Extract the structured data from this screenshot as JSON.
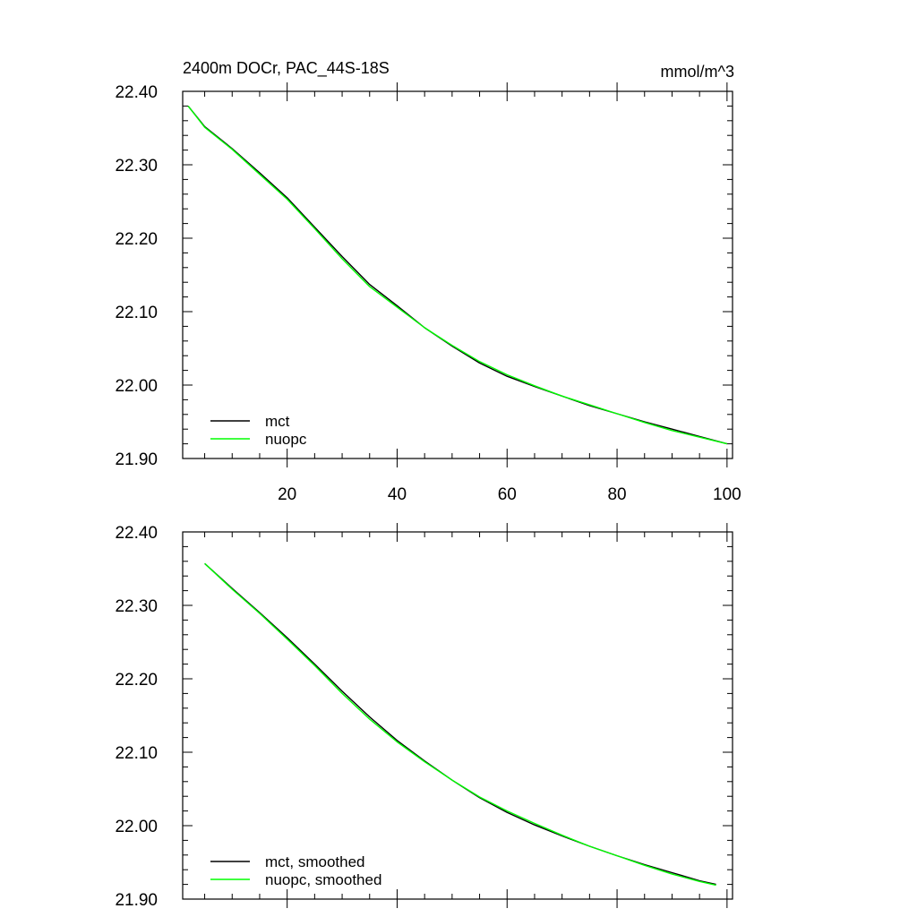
{
  "chart_data": [
    {
      "type": "line",
      "title": "2400m DOCr, PAC_44S-18S",
      "units": "mmol/m^3",
      "xlim": [
        1,
        101
      ],
      "ylim": [
        21.9,
        22.4
      ],
      "xticks": [
        "20",
        "40",
        "60",
        "80",
        "100"
      ],
      "yticks": [
        "22.40",
        "22.30",
        "22.20",
        "22.10",
        "22.00",
        "21.90"
      ],
      "legend": "bottom-left",
      "grid": false,
      "series": [
        {
          "name": "mct",
          "color": "#000000",
          "x": [
            2,
            5,
            10,
            15,
            20,
            25,
            30,
            35,
            40,
            45,
            50,
            55,
            60,
            65,
            70,
            75,
            80,
            85,
            90,
            95,
            100
          ],
          "y": [
            22.38,
            22.352,
            22.322,
            22.289,
            22.255,
            22.215,
            22.175,
            22.137,
            22.108,
            22.078,
            22.053,
            22.03,
            22.012,
            21.998,
            21.985,
            21.972,
            21.961,
            21.95,
            21.94,
            21.93,
            21.92
          ]
        },
        {
          "name": "nuopc",
          "color": "#00ff00",
          "x": [
            2,
            5,
            10,
            15,
            20,
            25,
            30,
            35,
            40,
            45,
            50,
            55,
            60,
            65,
            70,
            75,
            80,
            85,
            90,
            95,
            100
          ],
          "y": [
            22.38,
            22.351,
            22.321,
            22.287,
            22.253,
            22.213,
            22.172,
            22.134,
            22.106,
            22.078,
            22.054,
            22.032,
            22.014,
            21.999,
            21.985,
            21.973,
            21.961,
            21.949,
            21.938,
            21.929,
            21.92
          ]
        }
      ]
    },
    {
      "type": "line",
      "title": "",
      "xlim": [
        1,
        101
      ],
      "ylim": [
        21.9,
        22.4
      ],
      "xticks": [],
      "yticks": [
        "22.40",
        "22.30",
        "22.20",
        "22.10",
        "22.00",
        "21.90"
      ],
      "legend": "bottom-left",
      "grid": false,
      "series": [
        {
          "name": "mct, smoothed",
          "color": "#000000",
          "x": [
            5,
            10,
            15,
            20,
            25,
            30,
            35,
            40,
            45,
            50,
            55,
            60,
            65,
            70,
            75,
            80,
            85,
            90,
            95,
            98
          ],
          "y": [
            22.357,
            22.323,
            22.29,
            22.256,
            22.22,
            22.183,
            22.148,
            22.116,
            22.088,
            22.062,
            22.038,
            22.018,
            22.001,
            21.986,
            21.972,
            21.959,
            21.947,
            21.936,
            21.925,
            21.92
          ]
        },
        {
          "name": "nuopc, smoothed",
          "color": "#00ff00",
          "x": [
            5,
            10,
            15,
            20,
            25,
            30,
            35,
            40,
            45,
            50,
            55,
            60,
            65,
            70,
            75,
            80,
            85,
            90,
            95,
            98
          ],
          "y": [
            22.357,
            22.322,
            22.289,
            22.254,
            22.218,
            22.18,
            22.145,
            22.114,
            22.087,
            22.062,
            22.039,
            22.02,
            22.003,
            21.987,
            21.972,
            21.959,
            21.946,
            21.934,
            21.924,
            21.919
          ]
        }
      ]
    }
  ]
}
